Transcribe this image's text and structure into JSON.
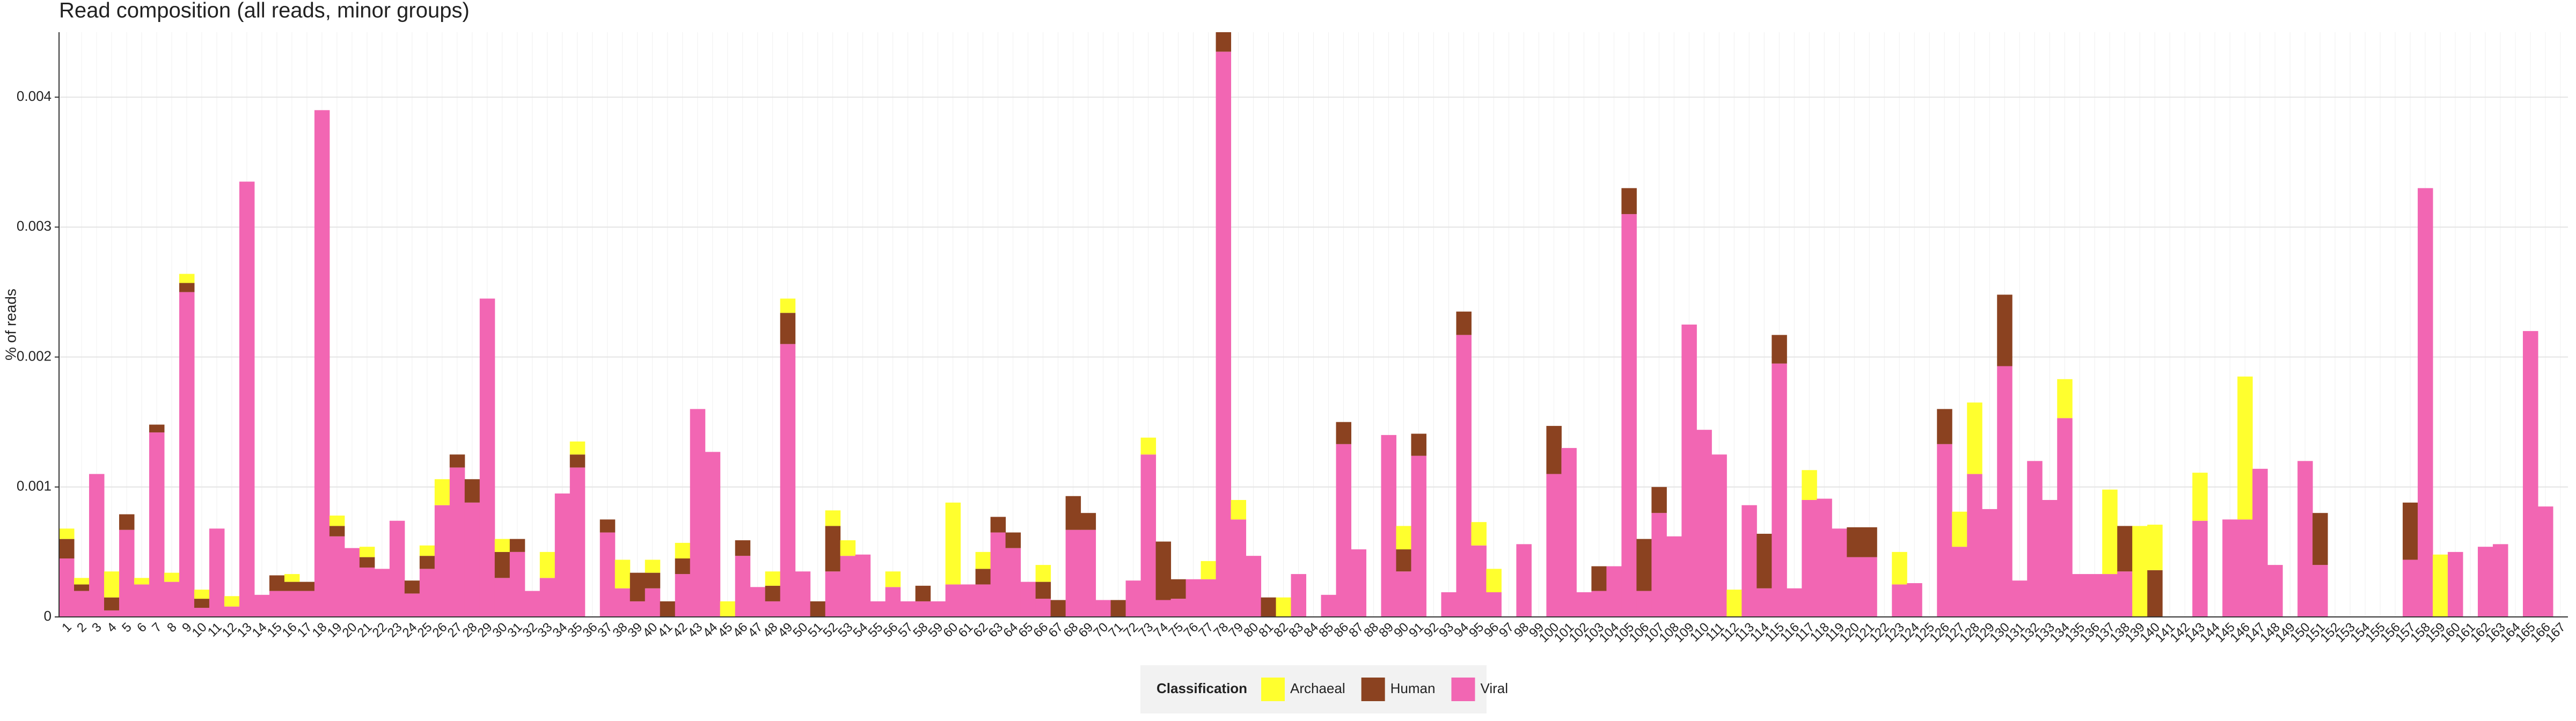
{
  "chart_data": {
    "type": "stacked_bar",
    "title": "Read composition (all reads, minor groups)",
    "y_label": "% of reads",
    "legend_title": "Classification",
    "categories": [
      "1",
      "2",
      "3",
      "4",
      "5",
      "6",
      "7",
      "8",
      "9",
      "10",
      "11",
      "12",
      "13",
      "14",
      "15",
      "16",
      "17",
      "18",
      "19",
      "20",
      "21",
      "22",
      "23",
      "24",
      "25",
      "26",
      "27",
      "28",
      "29",
      "30",
      "31",
      "32",
      "33",
      "34",
      "35",
      "36",
      "37",
      "38",
      "39",
      "40",
      "41",
      "42",
      "43",
      "44",
      "45",
      "46",
      "47",
      "48",
      "49",
      "50",
      "51",
      "52",
      "53",
      "54",
      "55",
      "56",
      "57",
      "58",
      "59",
      "60",
      "61",
      "62",
      "63",
      "64",
      "65",
      "66",
      "67",
      "68",
      "69",
      "70",
      "71",
      "72",
      "73",
      "74",
      "75",
      "76",
      "77",
      "78",
      "79",
      "80",
      "81",
      "82",
      "83",
      "84",
      "85",
      "86",
      "87",
      "88",
      "89",
      "90",
      "91",
      "92",
      "93",
      "94",
      "95",
      "96",
      "97",
      "98",
      "99",
      "100",
      "101",
      "102",
      "103",
      "104",
      "105",
      "106",
      "107",
      "108",
      "109",
      "110",
      "111",
      "112",
      "113",
      "114",
      "115",
      "116",
      "117",
      "118",
      "119",
      "120",
      "121",
      "122",
      "123",
      "124",
      "125",
      "126",
      "127",
      "128",
      "129",
      "130",
      "131",
      "132",
      "133",
      "134",
      "135",
      "136",
      "137",
      "138",
      "139",
      "140",
      "141",
      "142",
      "143",
      "144",
      "145",
      "146",
      "147",
      "148",
      "149",
      "150",
      "151",
      "152",
      "153",
      "154",
      "155",
      "156",
      "157",
      "158",
      "159",
      "160",
      "161",
      "162",
      "163",
      "164",
      "165",
      "166",
      "167"
    ],
    "series": [
      {
        "name": "Archaeal",
        "color": "#ffff2e",
        "values": [
          8e-05,
          5e-05,
          0,
          0.0002,
          0,
          5e-05,
          0,
          7e-05,
          7e-05,
          7e-05,
          0,
          8e-05,
          0,
          0,
          0,
          6e-05,
          0,
          0,
          8e-05,
          0,
          8e-05,
          0,
          0,
          0,
          8e-05,
          0.0002,
          0,
          0,
          0,
          0.0001,
          0,
          0,
          0.0002,
          0,
          0.0001,
          0,
          0,
          0.00022,
          0,
          0.0001,
          0,
          0.00012,
          0,
          0,
          0.00012,
          0,
          0,
          0.00011,
          0.00011,
          0,
          0,
          0.00012,
          0.00012,
          0,
          0,
          0.00012,
          0,
          0,
          0,
          0.00063,
          0,
          0.00013,
          0,
          0,
          0,
          0.00013,
          0,
          0,
          0,
          0,
          0,
          0,
          0.00013,
          0,
          0,
          0,
          0.00014,
          0,
          0.00015,
          0,
          0,
          0.00015,
          0,
          0,
          0,
          0,
          0,
          0,
          0,
          0.00018,
          0,
          0,
          0,
          0,
          0.00018,
          0.00018,
          0,
          0,
          0,
          0,
          0,
          0,
          0,
          0,
          0,
          0,
          0,
          0,
          0,
          0,
          0,
          0.00021,
          0,
          0,
          0,
          0,
          0.00023,
          0,
          0,
          0,
          0,
          0,
          0.00025,
          0,
          0,
          0,
          0.00027,
          0.00055,
          0,
          0,
          0,
          0,
          0,
          0.0003,
          0,
          0,
          0.00065,
          0,
          0.0007,
          0.00035,
          0,
          0,
          0.00037,
          0,
          0,
          0.0011,
          0,
          0,
          0,
          0,
          0,
          0,
          0,
          0,
          0,
          0,
          0,
          0,
          0.00048,
          0,
          0,
          0,
          0,
          0,
          0,
          0,
          0
        ]
      },
      {
        "name": "Human",
        "color": "#8b4220",
        "values": [
          0.00015,
          5e-05,
          0,
          0.0001,
          0.00012,
          0,
          6e-05,
          0,
          7e-05,
          7e-05,
          0,
          0,
          0,
          0,
          0.00012,
          7e-05,
          7e-05,
          0,
          8e-05,
          0,
          8e-05,
          0,
          0,
          0.0001,
          0.0001,
          0,
          0.0001,
          0.00018,
          0,
          0.0002,
          0.0001,
          0,
          0,
          0,
          0.0001,
          0,
          0.0001,
          0,
          0.00022,
          0.00012,
          0.00012,
          0.00012,
          0,
          0,
          0,
          0.00012,
          0,
          0.00012,
          0.00024,
          0,
          0.00012,
          0.00035,
          0,
          0,
          0,
          0,
          0,
          0.00012,
          0,
          0,
          0,
          0.00012,
          0.00012,
          0.00012,
          0,
          0.00013,
          0.00013,
          0.00026,
          0.00013,
          0,
          0.00013,
          0,
          0,
          0.00045,
          0.00015,
          0,
          0,
          0.00015,
          0,
          0,
          0.00015,
          0,
          0,
          0,
          0,
          0.00017,
          0,
          0,
          0,
          0.00017,
          0.00017,
          0,
          0,
          0.00018,
          0,
          0,
          0,
          0,
          0,
          0.00037,
          0,
          0,
          0.00019,
          0,
          0.0002,
          0.0004,
          0.0002,
          0,
          0,
          0,
          0,
          0,
          0,
          0.00042,
          0.00022,
          0,
          0,
          0,
          0,
          0.00023,
          0.00023,
          0,
          0,
          0,
          0,
          0.00027,
          0,
          0,
          0,
          0.00055,
          0,
          0,
          0,
          0,
          0,
          0,
          0,
          0.00035,
          0,
          0.00036,
          0,
          0,
          0,
          0,
          0,
          0,
          0,
          0,
          0,
          0,
          0.0004,
          0,
          0,
          0,
          0,
          0,
          0.00044,
          0,
          0,
          0,
          0,
          0,
          0,
          0,
          0,
          0,
          0
        ]
      },
      {
        "name": "Viral",
        "color": "#f266b3",
        "values": [
          0.00045,
          0.0002,
          0.0011,
          5e-05,
          0.00067,
          0.00025,
          0.00142,
          0.00027,
          0.0025,
          7e-05,
          0.00068,
          8e-05,
          0.00335,
          0.00017,
          0.0002,
          0.0002,
          0.0002,
          0.0039,
          0.00062,
          0.00053,
          0.00038,
          0.00037,
          0.00074,
          0.00018,
          0.00037,
          0.00086,
          0.00115,
          0.00088,
          0.00245,
          0.0003,
          0.0005,
          0.0002,
          0.0003,
          0.00095,
          0.00115,
          0,
          0.00065,
          0.00022,
          0.00012,
          0.00022,
          0,
          0.00033,
          0.0016,
          0.00127,
          0,
          0.00047,
          0.00023,
          0.00012,
          0.0021,
          0.00035,
          0,
          0.00035,
          0.00047,
          0.00048,
          0.00012,
          0.00023,
          0.00012,
          0.00012,
          0.00012,
          0.00025,
          0.00025,
          0.00025,
          0.00065,
          0.00053,
          0.00027,
          0.00014,
          0,
          0.00067,
          0.00067,
          0.00013,
          0,
          0.00028,
          0.00125,
          0.00013,
          0.00014,
          0.00029,
          0.00029,
          0.00435,
          0.00075,
          0.00047,
          0,
          0,
          0.00033,
          0,
          0.00017,
          0.00133,
          0.00052,
          0,
          0.0014,
          0.00035,
          0.00124,
          0,
          0.00019,
          0.00217,
          0.00055,
          0.00019,
          0,
          0.00056,
          0,
          0.0011,
          0.0013,
          0.00019,
          0.0002,
          0.00039,
          0.0031,
          0.0002,
          0.0008,
          0.00062,
          0.00225,
          0.00144,
          0.00125,
          0,
          0.00086,
          0.00022,
          0.00195,
          0.00022,
          0.0009,
          0.00091,
          0.00068,
          0.00046,
          0.00046,
          0,
          0.00025,
          0.00026,
          0,
          0.00133,
          0.00054,
          0.0011,
          0.00083,
          0.00193,
          0.00028,
          0.0012,
          0.0009,
          0.00153,
          0.00033,
          0.00033,
          0.00033,
          0.00035,
          0,
          0,
          0,
          0,
          0.00074,
          0,
          0.00075,
          0.00075,
          0.00114,
          0.0004,
          0,
          0.0012,
          0.0004,
          0,
          0,
          0,
          0,
          0,
          0.00044,
          0.0033,
          0,
          0.0005,
          0,
          0.00054,
          0.00056,
          0,
          0.0022,
          0.00085,
          0
        ]
      }
    ],
    "ylim": [
      0,
      0.0045
    ],
    "yticks": [
      0,
      0.001,
      0.002,
      0.003,
      0.004
    ],
    "grid": true,
    "legend_position": "bottom"
  }
}
